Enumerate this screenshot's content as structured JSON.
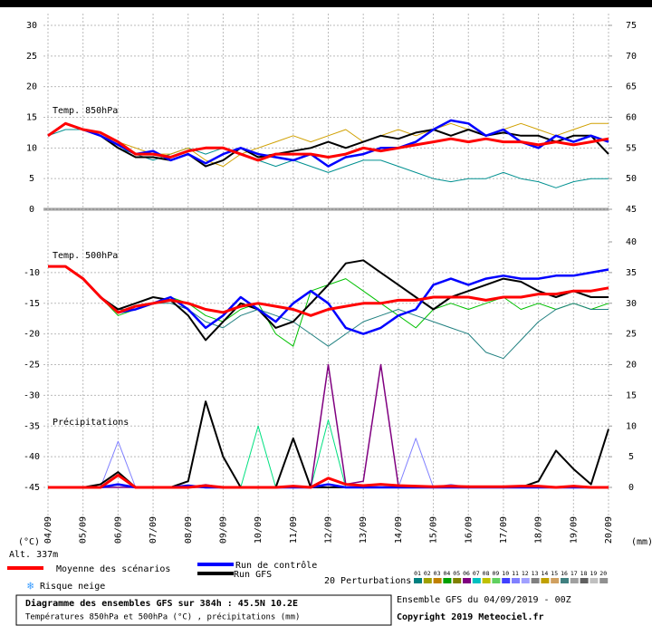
{
  "chart_data": {
    "type": "line",
    "x": [
      0,
      12,
      24,
      36,
      48,
      60,
      72,
      84,
      96,
      108,
      120,
      132,
      144,
      156,
      168,
      180,
      192,
      204,
      216,
      228,
      240,
      252,
      264,
      276,
      288,
      300,
      312,
      324,
      336,
      348,
      360,
      372,
      384
    ],
    "xlim": [
      0,
      384
    ],
    "xticks": [
      {
        "value": 0,
        "label": "04/09"
      },
      {
        "value": 24,
        "label": "05/09"
      },
      {
        "value": 48,
        "label": "06/09"
      },
      {
        "value": 72,
        "label": "07/09"
      },
      {
        "value": 96,
        "label": "08/09"
      },
      {
        "value": 120,
        "label": "09/09"
      },
      {
        "value": 144,
        "label": "10/09"
      },
      {
        "value": 168,
        "label": "11/09"
      },
      {
        "value": 192,
        "label": "12/09"
      },
      {
        "value": 216,
        "label": "13/09"
      },
      {
        "value": 240,
        "label": "14/09"
      },
      {
        "value": 264,
        "label": "15/09"
      },
      {
        "value": 288,
        "label": "16/09"
      },
      {
        "value": 312,
        "label": "17/09"
      },
      {
        "value": 336,
        "label": "18/09"
      },
      {
        "value": 360,
        "label": "19/09"
      },
      {
        "value": 384,
        "label": "20/09"
      }
    ],
    "x_unit_left": "(°C)",
    "x_unit_right": "(mm)",
    "panels": [
      {
        "title": "Temp. 850hPa",
        "ylim": [
          0,
          30
        ],
        "yticks": [
          0,
          5,
          10,
          15,
          20,
          25,
          30
        ],
        "y2lim": [
          45,
          75
        ],
        "y2ticks": [
          45,
          50,
          55,
          60,
          65,
          70,
          75
        ],
        "series": [
          {
            "color": "#009090",
            "line_width": 1,
            "values": [
              12,
              13,
              13,
              12,
              10,
              9,
              8,
              9,
              10,
              9,
              10,
              9,
              8,
              7,
              8,
              7,
              6,
              7,
              8,
              8,
              7,
              6,
              5,
              4.5,
              5,
              5,
              6,
              5,
              4.5,
              3.5,
              4.5,
              5,
              5
            ]
          },
          {
            "color": "#d0a000",
            "line_width": 1,
            "values": [
              12,
              14,
              13,
              12,
              11,
              10,
              9,
              9,
              10,
              8,
              7,
              9,
              10,
              11,
              12,
              11,
              12,
              13,
              11,
              12,
              13,
              12,
              13,
              14,
              13,
              12,
              13,
              14,
              13,
              12,
              13,
              14,
              14
            ]
          },
          {
            "name": "Run GFS",
            "color": "#000000",
            "line_width": 2,
            "values": [
              12,
              14,
              13,
              12,
              10,
              8.5,
              8.5,
              8,
              9,
              7,
              8,
              10,
              8.5,
              9,
              9.5,
              10,
              11,
              10,
              11,
              12,
              11.5,
              12.5,
              13,
              12,
              13,
              12,
              12.5,
              12,
              12,
              11,
              12,
              12,
              9
            ]
          },
          {
            "name": "Run de contrôle",
            "color": "#0000ff",
            "line_width": 2.5,
            "values": [
              12,
              14,
              13,
              12,
              10.5,
              9,
              9.5,
              8,
              9,
              7.5,
              9,
              10,
              9,
              8.5,
              8,
              9,
              7,
              8.5,
              9,
              10,
              10,
              11,
              13,
              14.5,
              14,
              12,
              13,
              11,
              10,
              12,
              11,
              12,
              11
            ]
          },
          {
            "name": "Moyenne des scénarios",
            "color": "#ff0000",
            "line_width": 3,
            "values": [
              12,
              14,
              13,
              12.5,
              11,
              9,
              9,
              8.5,
              9.5,
              10,
              10,
              9,
              8,
              9,
              9,
              9,
              8.5,
              9,
              10,
              9.5,
              10,
              10.5,
              11,
              11.5,
              11,
              11.5,
              11,
              11,
              10.5,
              11,
              10.5,
              11,
              11.5
            ]
          }
        ]
      },
      {
        "title": "Temp. 500hPa",
        "ylim": [
          -45,
          -5
        ],
        "yticks": [
          -10,
          -15,
          -20,
          -25,
          -30,
          -35,
          -40,
          -45
        ],
        "series": [
          {
            "color": "#00c000",
            "line_width": 1,
            "values": [
              -9,
              -9,
              -11,
              -14,
              -17,
              -16,
              -15,
              -14,
              -15,
              -17,
              -18,
              -16,
              -15,
              -20,
              -22,
              -13,
              -12,
              -11,
              -13,
              -15,
              -17,
              -19,
              -16,
              -15,
              -16,
              -15,
              -14,
              -16,
              -15,
              -16,
              -15,
              -16,
              -15
            ]
          },
          {
            "color": "#208080",
            "line_width": 1,
            "values": [
              -9,
              -9,
              -11,
              -14,
              -16,
              -16,
              -15,
              -15,
              -16,
              -18,
              -19,
              -17,
              -16,
              -17,
              -18,
              -20,
              -22,
              -20,
              -18,
              -17,
              -16,
              -17,
              -18,
              -19,
              -20,
              -23,
              -24,
              -21,
              -18,
              -16,
              -15,
              -16,
              -16
            ]
          },
          {
            "color": "#000000",
            "line_width": 2,
            "values": [
              -9,
              -9,
              -11,
              -14,
              -16,
              -15,
              -14,
              -14.5,
              -17,
              -21,
              -18,
              -15,
              -16,
              -19,
              -18,
              -15,
              -12,
              -8.5,
              -8,
              -10,
              -12,
              -14,
              -16,
              -14,
              -13,
              -12,
              -11,
              -11.5,
              -13,
              -14,
              -13,
              -14,
              -14
            ]
          },
          {
            "color": "#0000ff",
            "line_width": 2.5,
            "values": [
              -9,
              -9,
              -11,
              -14,
              -16.5,
              -16,
              -15,
              -14,
              -16,
              -19,
              -17,
              -14,
              -16,
              -18,
              -15,
              -13,
              -15,
              -19,
              -20,
              -19,
              -17,
              -16,
              -12,
              -11,
              -12,
              -11,
              -10.5,
              -11,
              -11,
              -10.5,
              -10.5,
              -10,
              -9.5
            ]
          },
          {
            "color": "#ff0000",
            "line_width": 3,
            "values": [
              -9,
              -9,
              -11,
              -14,
              -16.5,
              -15.5,
              -15,
              -14.5,
              -15,
              -16,
              -16.5,
              -15.5,
              -15,
              -15.5,
              -16,
              -17,
              -16,
              -15.5,
              -15,
              -15,
              -14.5,
              -14.5,
              -14,
              -14,
              -14,
              -14.5,
              -14,
              -14,
              -13.5,
              -13.5,
              -13,
              -13,
              -12.5
            ]
          }
        ]
      },
      {
        "title": "Précipitations",
        "ylim": [
          0,
          40
        ],
        "yticks": [
          0,
          5,
          10,
          15,
          20,
          25,
          30,
          35,
          40
        ],
        "y_axis_side": "right",
        "series": [
          {
            "color": "#8080ff",
            "line_width": 1,
            "values": [
              0,
              0,
              0,
              0,
              7.5,
              0,
              0,
              0,
              0,
              0.5,
              0,
              0,
              0,
              0,
              0,
              0,
              0,
              0,
              0,
              0,
              0,
              8,
              0,
              0.5,
              0,
              0,
              0,
              0,
              0,
              0,
              0,
              0,
              0
            ]
          },
          {
            "color": "#00e080",
            "line_width": 1,
            "values": [
              0,
              0,
              0,
              0,
              0,
              0,
              0,
              0,
              0,
              0,
              0,
              0,
              10,
              0,
              0,
              0,
              11,
              0,
              0,
              0,
              0,
              0,
              0,
              0,
              0,
              0,
              0,
              0,
              0,
              0,
              0,
              0,
              0
            ]
          },
          {
            "color": "#800080",
            "line_width": 1.5,
            "values": [
              0,
              0,
              0,
              0,
              0,
              0,
              0,
              0,
              0,
              0,
              0,
              0,
              0,
              0,
              0,
              0,
              20,
              0.5,
              1,
              20,
              0.3,
              0,
              0,
              0,
              0,
              0,
              0,
              0,
              0,
              0,
              0,
              0,
              0
            ]
          },
          {
            "color": "#000000",
            "line_width": 2,
            "values": [
              0,
              0,
              0,
              0.5,
              2.5,
              0,
              0,
              0,
              1,
              14,
              5,
              0,
              0,
              0,
              8,
              0,
              0,
              0,
              0,
              0,
              0,
              0,
              0,
              0,
              0,
              0,
              0,
              0,
              1,
              6,
              3,
              0.5,
              9.5
            ]
          },
          {
            "color": "#0000ff",
            "line_width": 2.5,
            "values": [
              0,
              0,
              0,
              0,
              0.5,
              0,
              0,
              0,
              0.3,
              0,
              0,
              0,
              0,
              0,
              0,
              0,
              0.5,
              0,
              0,
              0,
              0,
              0,
              0,
              0,
              0,
              0,
              0,
              0,
              0,
              0,
              0,
              0,
              0
            ]
          },
          {
            "color": "#ff0000",
            "line_width": 3,
            "values": [
              0,
              0,
              0,
              0,
              2,
              0,
              0,
              0,
              0,
              0.3,
              0,
              0,
              0,
              0,
              0.2,
              0,
              1.5,
              0.5,
              0.3,
              0.5,
              0.3,
              0.2,
              0.1,
              0.2,
              0.1,
              0.1,
              0.1,
              0.2,
              0.2,
              0,
              0.2,
              0,
              0
            ]
          }
        ]
      }
    ]
  },
  "page": {
    "altitude": "Alt. 337m",
    "snow": "Risque neige",
    "perturbations_title": "20 Perturbations",
    "perturbations": [
      {
        "label": "01",
        "color": "#008080"
      },
      {
        "label": "02",
        "color": "#a0a000"
      },
      {
        "label": "03",
        "color": "#c08000"
      },
      {
        "label": "04",
        "color": "#00a000"
      },
      {
        "label": "05",
        "color": "#808000"
      },
      {
        "label": "06",
        "color": "#800080"
      },
      {
        "label": "07",
        "color": "#00c0c0"
      },
      {
        "label": "08",
        "color": "#c0c000"
      },
      {
        "label": "09",
        "color": "#60d060"
      },
      {
        "label": "10",
        "color": "#4040ff"
      },
      {
        "label": "11",
        "color": "#8080ff"
      },
      {
        "label": "12",
        "color": "#a0a0ff"
      },
      {
        "label": "13",
        "color": "#808080"
      },
      {
        "label": "14",
        "color": "#c0a000"
      },
      {
        "label": "15",
        "color": "#d0a060"
      },
      {
        "label": "16",
        "color": "#408080"
      },
      {
        "label": "17",
        "color": "#a0a0a0"
      },
      {
        "label": "18",
        "color": "#606060"
      },
      {
        "label": "19",
        "color": "#c0c0c0"
      },
      {
        "label": "20",
        "color": "#909090"
      }
    ],
    "footer_title": "Diagramme des ensembles GFS sur 384h : 45.5N 10.2E",
    "footer_subtitle": "Températures 850hPa et 500hPa (°C) , précipitations (mm)",
    "run_info": "Ensemble GFS du 04/09/2019 - 00Z",
    "copyright": "Copyright 2019 Meteociel.fr"
  }
}
